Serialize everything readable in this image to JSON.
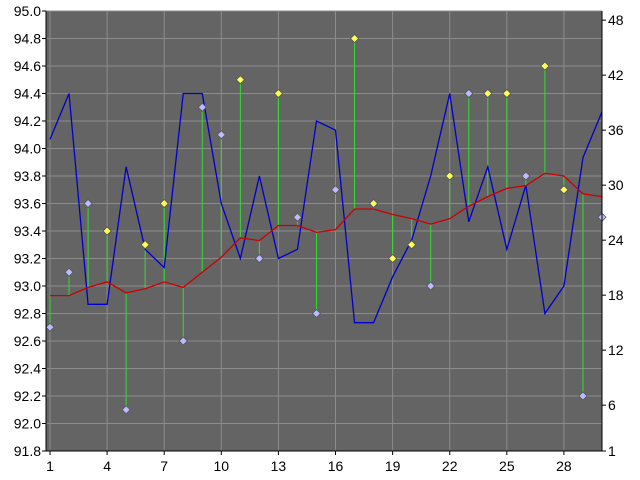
{
  "chart_data": {
    "type": "line",
    "title": "",
    "xlabel": "",
    "ylabel": "",
    "grid": true,
    "background_color": "#646464",
    "grid_color": "#8c8c8c",
    "x": [
      1,
      2,
      3,
      4,
      5,
      6,
      7,
      8,
      9,
      10,
      11,
      12,
      13,
      14,
      15,
      16,
      17,
      18,
      19,
      20,
      21,
      22,
      23,
      24,
      25,
      26,
      27,
      28,
      29,
      30
    ],
    "x_ticks": [
      1,
      4,
      7,
      10,
      13,
      16,
      19,
      22,
      25,
      28
    ],
    "y_left": {
      "range": [
        91.8,
        95.0
      ],
      "ticks": [
        "91.8",
        "92.0",
        "92.2",
        "92.4",
        "92.6",
        "92.8",
        "93.0",
        "93.2",
        "93.4",
        "93.6",
        "93.8",
        "94.0",
        "94.2",
        "94.4",
        "94.6",
        "94.8",
        "95.0"
      ]
    },
    "y_right": {
      "range": [
        1,
        49
      ],
      "ticks": [
        "1",
        "6",
        "12",
        "18",
        "24",
        "30",
        "36",
        "42",
        "48"
      ]
    },
    "series": [
      {
        "type": "line",
        "axis": "right",
        "color": "#0000cc",
        "values": [
          35,
          40,
          17,
          17,
          32,
          23,
          21,
          40,
          40,
          28,
          22,
          31,
          22,
          23,
          37,
          36,
          15,
          15,
          20,
          24,
          31,
          40,
          26,
          32,
          23,
          30,
          16,
          19,
          33,
          38
        ]
      },
      {
        "type": "line",
        "axis": "left",
        "color": "#cc0000",
        "values": [
          92.93,
          92.93,
          92.99,
          93.03,
          92.95,
          92.98,
          93.03,
          92.99,
          93.1,
          93.21,
          93.35,
          93.33,
          93.44,
          93.44,
          93.39,
          93.41,
          93.56,
          93.56,
          93.52,
          93.49,
          93.45,
          93.49,
          93.58,
          93.65,
          93.71,
          93.73,
          93.82,
          93.8,
          93.67,
          93.65
        ]
      },
      {
        "type": "scatter",
        "axis": "left",
        "values": [
          92.7,
          93.1,
          93.6,
          93.4,
          92.1,
          93.3,
          93.6,
          92.6,
          94.3,
          94.1,
          94.5,
          93.2,
          94.4,
          93.5,
          92.8,
          93.7,
          94.8,
          93.6,
          93.2,
          93.3,
          93.0,
          93.8,
          94.4,
          94.4,
          94.4,
          93.8,
          94.6,
          93.7,
          92.2,
          93.5
        ],
        "marker_colors": [
          "#bbbbff",
          "#bbbbff",
          "#bbbbff",
          "#ffff55",
          "#bbbbff",
          "#ffff55",
          "#ffff55",
          "#bbbbff",
          "#bbbbff",
          "#bbbbff",
          "#ffff55",
          "#bbbbff",
          "#ffff55",
          "#bbbbff",
          "#bbbbff",
          "#bbbbff",
          "#ffff55",
          "#ffff55",
          "#ffff55",
          "#ffff55",
          "#bbbbff",
          "#ffff55",
          "#bbbbff",
          "#ffff55",
          "#ffff55",
          "#bbbbff",
          "#ffff55",
          "#ffff55",
          "#bbbbff",
          "#bbbbff"
        ],
        "connector_color": "#33dd33"
      }
    ]
  }
}
